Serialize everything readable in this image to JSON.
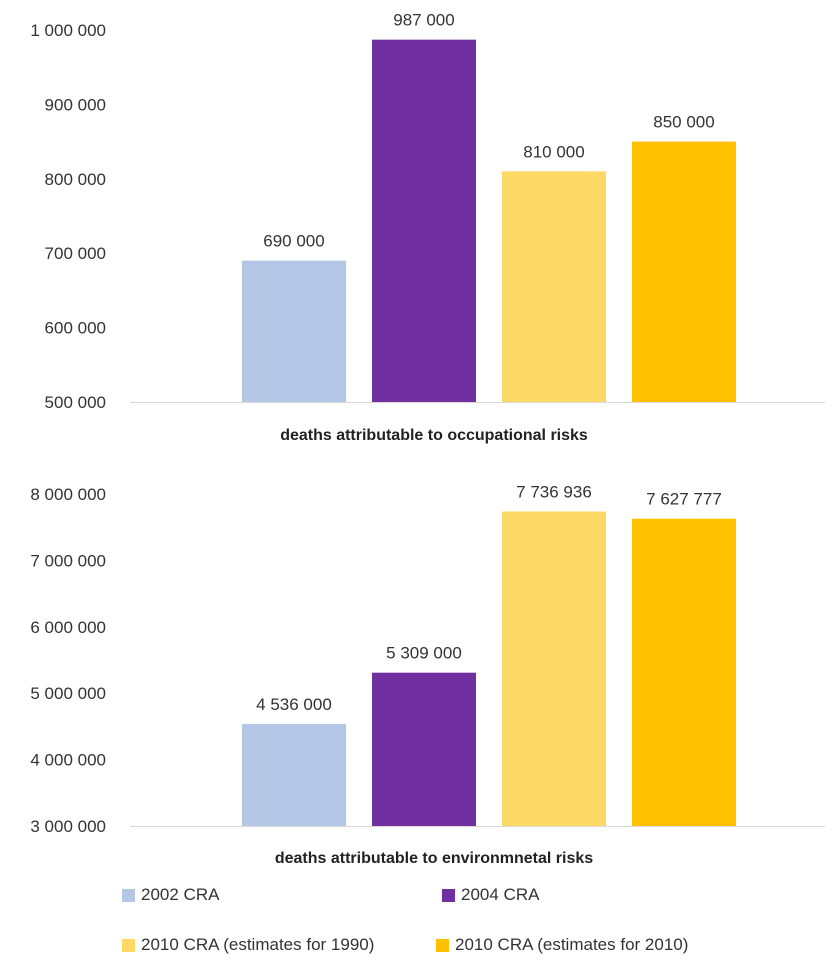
{
  "chart_data": [
    {
      "type": "bar",
      "xlabel": "deaths attributable to occupational risks",
      "ylabel": "",
      "ylim": [
        500000,
        1000000
      ],
      "yticks": [
        "500 000",
        "600 000",
        "700 000",
        "800 000",
        "900 000",
        "1 000 000"
      ],
      "ytick_values": [
        500000,
        600000,
        700000,
        800000,
        900000,
        1000000
      ],
      "series": [
        {
          "name": "2002 CRA",
          "value": 690000,
          "label": "690 000"
        },
        {
          "name": "2004 CRA",
          "value": 987000,
          "label": "987 000"
        },
        {
          "name": "2010 CRA (estimates for 1990)",
          "value": 810000,
          "label": "810 000"
        },
        {
          "name": "2010 CRA (estimates for 2010)",
          "value": 850000,
          "label": "850 000"
        }
      ]
    },
    {
      "type": "bar",
      "xlabel": "deaths attributable to environmnetal risks",
      "ylabel": "",
      "ylim": [
        3000000,
        8000000
      ],
      "yticks": [
        "3 000 000",
        "4 000 000",
        "5 000 000",
        "6 000 000",
        "7 000 000",
        "8 000 000"
      ],
      "ytick_values": [
        3000000,
        4000000,
        5000000,
        6000000,
        7000000,
        8000000
      ],
      "series": [
        {
          "name": "2002 CRA",
          "value": 4536000,
          "label": "4 536 000"
        },
        {
          "name": "2004 CRA",
          "value": 5309000,
          "label": "5 309 000"
        },
        {
          "name": "2010 CRA (estimates for 1990)",
          "value": 7736936,
          "label": "7 736 936"
        },
        {
          "name": "2010 CRA (estimates for 2010)",
          "value": 7627777,
          "label": "7 627 777"
        }
      ]
    }
  ],
  "legend": {
    "placement": "bottom",
    "items": [
      {
        "label": "2002 CRA",
        "color": "#b4c7e7"
      },
      {
        "label": "2004 CRA",
        "color": "#7030a0"
      },
      {
        "label": "2010 CRA (estimates for 1990)",
        "color": "#ffd966"
      },
      {
        "label": "2010 CRA (estimates for 2010)",
        "color": "#ffc000"
      }
    ]
  },
  "grid": false
}
